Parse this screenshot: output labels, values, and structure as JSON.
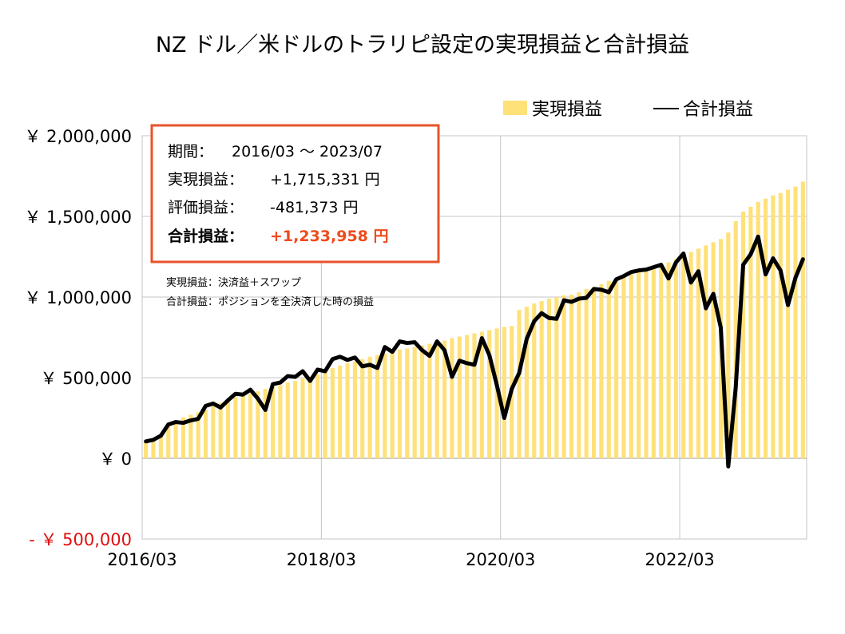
{
  "colors": {
    "bar": "#ffe17a",
    "line": "#000000",
    "negative_tick": "#e01010",
    "highlight_value": "#ef4a1c",
    "box_border": "#e8532a",
    "grid": "#c4c4c4",
    "zero_line": "#999999"
  },
  "info_box": {
    "period_label": "期間：",
    "period_value": "2016/03 ～ 2023/07",
    "realized_label": "実現損益：",
    "realized_value": "+1,715,331 円",
    "unrealized_label": "評価損益：",
    "unrealized_value": "-481,373 円",
    "total_label": "合計損益：",
    "total_value": "+1,233,958 円"
  },
  "notes": [
    "実現損益：決済益＋スワップ",
    "合計損益：ポジションを全決済した時の損益"
  ],
  "chart_data": {
    "type": "bar",
    "title": "NZ ドル／米ドルのトラリピ設定の実現損益と合計損益",
    "ylim": [
      -500000,
      2000000
    ],
    "yticks": [
      {
        "value": 2000000,
        "label": "￥ 2,000,000"
      },
      {
        "value": 1500000,
        "label": "￥ 1,500,000"
      },
      {
        "value": 1000000,
        "label": "￥ 1,000,000"
      },
      {
        "value": 500000,
        "label": "￥ 500,000"
      },
      {
        "value": 0,
        "label": "￥ 0"
      },
      {
        "value": -500000,
        "label": "- ￥ 500,000"
      }
    ],
    "xtick_labels": [
      {
        "category": "2016/03",
        "label": "2016/03"
      },
      {
        "category": "2018/03",
        "label": "2018/03"
      },
      {
        "category": "2020/03",
        "label": "2020/03"
      },
      {
        "category": "2022/03",
        "label": "2022/03"
      }
    ],
    "legend_position": "top-right",
    "grid": true,
    "categories": [
      "2016/03",
      "2016/04",
      "2016/05",
      "2016/06",
      "2016/07",
      "2016/08",
      "2016/09",
      "2016/10",
      "2016/11",
      "2016/12",
      "2017/01",
      "2017/02",
      "2017/03",
      "2017/04",
      "2017/05",
      "2017/06",
      "2017/07",
      "2017/08",
      "2017/09",
      "2017/10",
      "2017/11",
      "2017/12",
      "2018/01",
      "2018/02",
      "2018/03",
      "2018/04",
      "2018/05",
      "2018/06",
      "2018/07",
      "2018/08",
      "2018/09",
      "2018/10",
      "2018/11",
      "2018/12",
      "2019/01",
      "2019/02",
      "2019/03",
      "2019/04",
      "2019/05",
      "2019/06",
      "2019/07",
      "2019/08",
      "2019/09",
      "2019/10",
      "2019/11",
      "2019/12",
      "2020/01",
      "2020/02",
      "2020/03",
      "2020/04",
      "2020/05",
      "2020/06",
      "2020/07",
      "2020/08",
      "2020/09",
      "2020/10",
      "2020/11",
      "2020/12",
      "2021/01",
      "2021/02",
      "2021/03",
      "2021/04",
      "2021/05",
      "2021/06",
      "2021/07",
      "2021/08",
      "2021/09",
      "2021/10",
      "2021/11",
      "2021/12",
      "2022/01",
      "2022/02",
      "2022/03",
      "2022/04",
      "2022/05",
      "2022/06",
      "2022/07",
      "2022/08",
      "2022/09",
      "2022/10",
      "2022/11",
      "2022/12",
      "2023/01",
      "2023/02",
      "2023/03",
      "2023/04",
      "2023/05",
      "2023/06",
      "2023/07"
    ],
    "series": [
      {
        "name": "実現損益",
        "type": "bar",
        "values": [
          105000,
          125000,
          150000,
          200000,
          235000,
          255000,
          270000,
          285000,
          300000,
          325000,
          345000,
          360000,
          380000,
          390000,
          400000,
          415000,
          430000,
          445000,
          455000,
          470000,
          480000,
          495000,
          505000,
          520000,
          545000,
          560000,
          575000,
          590000,
          600000,
          615000,
          630000,
          640000,
          650000,
          660000,
          675000,
          680000,
          690000,
          700000,
          710000,
          720000,
          730000,
          745000,
          755000,
          765000,
          775000,
          785000,
          795000,
          805000,
          815000,
          820000,
          920000,
          940000,
          960000,
          975000,
          990000,
          1000000,
          1010000,
          1015000,
          1030000,
          1050000,
          1060000,
          1080000,
          1100000,
          1110000,
          1130000,
          1140000,
          1160000,
          1170000,
          1185000,
          1200000,
          1215000,
          1235000,
          1260000,
          1280000,
          1300000,
          1320000,
          1340000,
          1360000,
          1400000,
          1470000,
          1530000,
          1560000,
          1590000,
          1610000,
          1630000,
          1645000,
          1665000,
          1685000,
          1715331
        ]
      },
      {
        "name": "合計損益",
        "type": "line",
        "values": [
          105000,
          115000,
          140000,
          210000,
          225000,
          220000,
          235000,
          245000,
          325000,
          340000,
          315000,
          360000,
          400000,
          395000,
          425000,
          370000,
          300000,
          460000,
          470000,
          510000,
          505000,
          540000,
          480000,
          550000,
          540000,
          615000,
          630000,
          610000,
          625000,
          570000,
          580000,
          560000,
          690000,
          660000,
          725000,
          715000,
          720000,
          670000,
          635000,
          725000,
          670000,
          505000,
          605000,
          590000,
          580000,
          745000,
          640000,
          455000,
          250000,
          430000,
          530000,
          740000,
          850000,
          900000,
          870000,
          865000,
          980000,
          970000,
          990000,
          995000,
          1050000,
          1045000,
          1030000,
          1110000,
          1130000,
          1155000,
          1165000,
          1170000,
          1185000,
          1200000,
          1115000,
          1215000,
          1270000,
          1090000,
          1160000,
          930000,
          1020000,
          810000,
          -50000,
          440000,
          1200000,
          1265000,
          1375000,
          1140000,
          1240000,
          1165000,
          950000,
          1120000,
          1233958
        ]
      }
    ]
  }
}
